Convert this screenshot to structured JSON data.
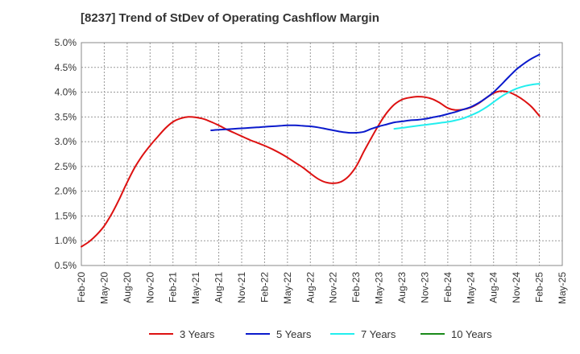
{
  "chart_data": {
    "type": "line",
    "title": "[8237]  Trend of StDev of Operating Cashflow Margin",
    "xlabel": "",
    "ylabel": "",
    "x_tick_labels": [
      "Feb-20",
      "May-20",
      "Aug-20",
      "Nov-20",
      "Feb-21",
      "May-21",
      "Aug-21",
      "Nov-21",
      "Feb-22",
      "May-22",
      "Aug-22",
      "Nov-22",
      "Feb-23",
      "May-23",
      "Aug-23",
      "Nov-23",
      "Feb-24",
      "May-24",
      "Aug-24",
      "Nov-24",
      "Feb-25",
      "May-25"
    ],
    "y_tick_labels": [
      "0.5%",
      "1.0%",
      "1.5%",
      "2.0%",
      "2.5%",
      "3.0%",
      "3.5%",
      "4.0%",
      "4.5%",
      "5.0%"
    ],
    "ylim": [
      0.5,
      5.0
    ],
    "y_unit": "%",
    "grid": true,
    "legend_position": "bottom",
    "series": [
      {
        "name": "3 Years",
        "color": "#dd1111",
        "x": [
          "Feb-20",
          "Mar-20",
          "Apr-20",
          "May-20",
          "Jun-20",
          "Jul-20",
          "Aug-20",
          "Sep-20",
          "Oct-20",
          "Nov-20",
          "Dec-20",
          "Jan-21",
          "Feb-21",
          "Mar-21",
          "Apr-21",
          "May-21",
          "Jun-21",
          "Jul-21",
          "Aug-21",
          "Sep-21",
          "Oct-21",
          "Nov-21",
          "Dec-21",
          "Jan-22",
          "Feb-22",
          "Mar-22",
          "Apr-22",
          "May-22",
          "Jun-22",
          "Jul-22",
          "Aug-22",
          "Sep-22",
          "Oct-22",
          "Nov-22",
          "Dec-22",
          "Jan-23",
          "Feb-23",
          "Mar-23",
          "Apr-23",
          "May-23",
          "Jun-23",
          "Jul-23",
          "Aug-23",
          "Sep-23",
          "Oct-23",
          "Nov-23",
          "Dec-23",
          "Jan-24",
          "Feb-24",
          "Mar-24",
          "Apr-24",
          "May-24",
          "Jun-24",
          "Jul-24",
          "Aug-24",
          "Sep-24",
          "Oct-24",
          "Nov-24",
          "Dec-24",
          "Jan-25",
          "Feb-25"
        ],
        "values": [
          0.88,
          0.98,
          1.12,
          1.3,
          1.55,
          1.85,
          2.18,
          2.48,
          2.72,
          2.92,
          3.1,
          3.27,
          3.4,
          3.47,
          3.5,
          3.49,
          3.46,
          3.4,
          3.33,
          3.25,
          3.18,
          3.11,
          3.04,
          2.98,
          2.92,
          2.85,
          2.77,
          2.68,
          2.58,
          2.48,
          2.36,
          2.25,
          2.18,
          2.16,
          2.19,
          2.3,
          2.5,
          2.8,
          3.08,
          3.35,
          3.58,
          3.75,
          3.85,
          3.89,
          3.91,
          3.9,
          3.86,
          3.78,
          3.68,
          3.64,
          3.65,
          3.69,
          3.77,
          3.88,
          3.98,
          4.02,
          4.0,
          3.93,
          3.83,
          3.7,
          3.52
        ]
      },
      {
        "name": "5 Years",
        "color": "#0a1acc",
        "x": [
          "Jul-21",
          "Aug-21",
          "Sep-21",
          "Oct-21",
          "Nov-21",
          "Dec-21",
          "Jan-22",
          "Feb-22",
          "Mar-22",
          "Apr-22",
          "May-22",
          "Jun-22",
          "Jul-22",
          "Aug-22",
          "Sep-22",
          "Oct-22",
          "Nov-22",
          "Dec-22",
          "Jan-23",
          "Feb-23",
          "Mar-23",
          "Apr-23",
          "May-23",
          "Jun-23",
          "Jul-23",
          "Aug-23",
          "Sep-23",
          "Oct-23",
          "Nov-23",
          "Dec-23",
          "Jan-24",
          "Feb-24",
          "Mar-24",
          "Apr-24",
          "May-24",
          "Jun-24",
          "Jul-24",
          "Aug-24",
          "Sep-24",
          "Oct-24",
          "Nov-24",
          "Dec-24",
          "Jan-25",
          "Feb-25"
        ],
        "values": [
          3.23,
          3.24,
          3.25,
          3.26,
          3.27,
          3.28,
          3.29,
          3.3,
          3.31,
          3.32,
          3.33,
          3.33,
          3.32,
          3.31,
          3.29,
          3.26,
          3.23,
          3.2,
          3.18,
          3.18,
          3.2,
          3.26,
          3.31,
          3.35,
          3.39,
          3.41,
          3.43,
          3.44,
          3.46,
          3.49,
          3.52,
          3.56,
          3.6,
          3.65,
          3.7,
          3.78,
          3.88,
          4.0,
          4.15,
          4.31,
          4.46,
          4.58,
          4.68,
          4.76
        ]
      },
      {
        "name": "7 Years",
        "color": "#22eeee",
        "x": [
          "Jul-23",
          "Aug-23",
          "Sep-23",
          "Oct-23",
          "Nov-23",
          "Dec-23",
          "Jan-24",
          "Feb-24",
          "Mar-24",
          "Apr-24",
          "May-24",
          "Jun-24",
          "Jul-24",
          "Aug-24",
          "Sep-24",
          "Oct-24",
          "Nov-24",
          "Dec-24",
          "Jan-25",
          "Feb-25"
        ],
        "values": [
          3.26,
          3.28,
          3.3,
          3.32,
          3.34,
          3.36,
          3.38,
          3.4,
          3.43,
          3.47,
          3.53,
          3.6,
          3.69,
          3.8,
          3.91,
          4.0,
          4.07,
          4.12,
          4.15,
          4.17
        ]
      },
      {
        "name": "10 Years",
        "color": "#1a8a1a",
        "x": [],
        "values": []
      }
    ]
  }
}
